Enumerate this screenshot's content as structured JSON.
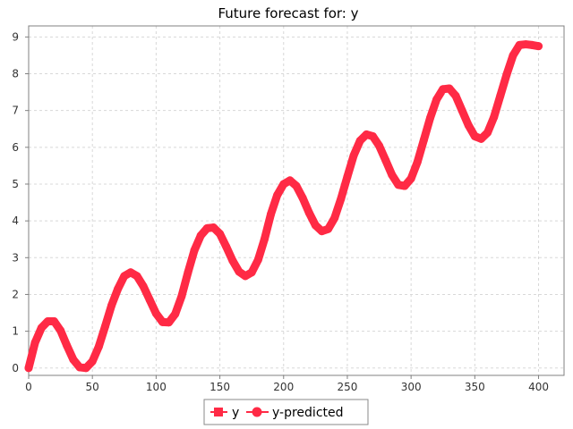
{
  "chart_data": {
    "type": "line",
    "title": "Future forecast for: y",
    "xlabel": "",
    "ylabel": "",
    "xlim": [
      0,
      420
    ],
    "ylim": [
      -0.2,
      9.3
    ],
    "x_ticks": [
      0,
      50,
      100,
      150,
      200,
      250,
      300,
      350,
      400
    ],
    "y_ticks": [
      0,
      1,
      2,
      3,
      4,
      5,
      6,
      7,
      8,
      9
    ],
    "grid": true,
    "legend_position": "bottom",
    "colors": {
      "series": "#ff2a45",
      "grid": "#d8d8d8",
      "axis": "#808080"
    },
    "series": [
      {
        "name": "y",
        "marker": "square",
        "x": [
          0,
          5,
          10,
          15,
          20,
          25,
          30,
          35,
          40,
          45,
          50,
          55,
          60,
          65,
          70,
          75,
          80,
          85,
          90,
          95,
          100,
          105,
          110,
          115,
          120,
          125,
          130,
          135,
          140,
          145,
          150,
          155,
          160,
          165,
          170,
          175,
          180,
          185,
          190,
          195,
          200,
          205,
          210,
          215,
          220,
          225,
          230,
          235,
          240,
          245,
          250,
          255,
          260,
          265,
          270,
          275,
          280,
          285,
          290,
          295,
          300,
          305,
          310,
          315,
          320,
          325,
          330,
          335,
          340,
          345,
          350,
          355,
          360,
          365,
          370,
          375,
          380,
          385,
          390,
          395,
          400
        ],
        "y": [
          0.0,
          0.69,
          1.09,
          1.27,
          1.27,
          1.02,
          0.61,
          0.23,
          0.02,
          0.0,
          0.18,
          0.58,
          1.13,
          1.7,
          2.15,
          2.5,
          2.6,
          2.5,
          2.22,
          1.85,
          1.48,
          1.25,
          1.24,
          1.47,
          1.95,
          2.6,
          3.2,
          3.6,
          3.8,
          3.82,
          3.65,
          3.3,
          2.92,
          2.62,
          2.5,
          2.6,
          2.94,
          3.5,
          4.18,
          4.7,
          5.0,
          5.1,
          4.95,
          4.62,
          4.22,
          3.88,
          3.72,
          3.78,
          4.08,
          4.6,
          5.2,
          5.78,
          6.18,
          6.35,
          6.3,
          6.04,
          5.65,
          5.25,
          4.98,
          4.95,
          5.15,
          5.6,
          6.2,
          6.8,
          7.3,
          7.58,
          7.6,
          7.4,
          7.0,
          6.6,
          6.3,
          6.23,
          6.4,
          6.82,
          7.4,
          7.98,
          8.5,
          8.78,
          8.8,
          8.78,
          8.75
        ]
      },
      {
        "name": "y-predicted",
        "marker": "circle"
      }
    ]
  }
}
